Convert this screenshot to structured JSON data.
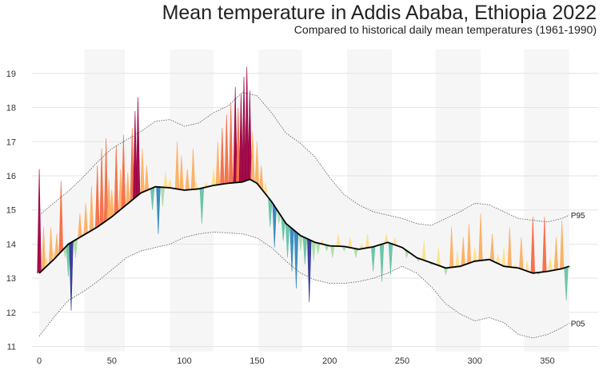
{
  "title": "Mean temperature in Addis Ababa, Ethiopia 2022",
  "subtitle": "Compared to historical daily mean temperatures (1961-1990)",
  "chart_data": {
    "type": "area",
    "title": "Mean temperature in Addis Ababa, Ethiopia 2022",
    "subtitle": "Compared to historical daily mean temperatures (1961-1990)",
    "xlabel": "",
    "ylabel": "",
    "xlim": [
      -5,
      385
    ],
    "ylim": [
      10.85,
      19.7
    ],
    "x_ticks": [
      0,
      50,
      100,
      150,
      200,
      250,
      300,
      350
    ],
    "y_ticks": [
      11,
      12,
      13,
      14,
      15,
      16,
      17,
      18,
      19
    ],
    "grid": "horizontal",
    "month_bands": [
      [
        31,
        59
      ],
      [
        90,
        120
      ],
      [
        151,
        181
      ],
      [
        212,
        243
      ],
      [
        273,
        304
      ],
      [
        334,
        365
      ]
    ],
    "series_labels": [
      "P95",
      "P05"
    ],
    "colors": {
      "hot_extreme": "#9e0142",
      "hot": "#f46d43",
      "warm": "#fdae61",
      "mild": "#fee08b",
      "cool": "#abdda4",
      "cold": "#66c2a5",
      "colder": "#3288bd",
      "cold_extreme": "#313695",
      "mean_line": "#000000",
      "band_fill": "#f5f5f5",
      "grid": "#e3e3e3"
    },
    "mean": {
      "x": [
        0,
        10,
        20,
        30,
        40,
        50,
        60,
        70,
        80,
        90,
        100,
        110,
        120,
        130,
        140,
        145,
        150,
        160,
        170,
        180,
        190,
        200,
        210,
        220,
        230,
        240,
        250,
        260,
        270,
        280,
        290,
        300,
        310,
        320,
        330,
        340,
        350,
        360,
        365
      ],
      "y": [
        13.15,
        13.55,
        14.0,
        14.25,
        14.5,
        14.8,
        15.15,
        15.5,
        15.68,
        15.65,
        15.58,
        15.62,
        15.72,
        15.78,
        15.82,
        15.9,
        15.78,
        15.25,
        14.6,
        14.25,
        14.05,
        13.95,
        13.93,
        13.85,
        13.92,
        14.05,
        13.9,
        13.6,
        13.45,
        13.3,
        13.35,
        13.5,
        13.55,
        13.35,
        13.3,
        13.15,
        13.2,
        13.28,
        13.35
      ]
    },
    "p95": {
      "x": [
        0,
        10,
        20,
        30,
        40,
        50,
        60,
        70,
        80,
        90,
        100,
        110,
        120,
        130,
        140,
        150,
        160,
        170,
        180,
        190,
        200,
        210,
        220,
        230,
        240,
        250,
        260,
        270,
        280,
        290,
        300,
        310,
        320,
        330,
        340,
        350,
        360,
        365
      ],
      "y": [
        14.85,
        15.2,
        15.55,
        15.95,
        16.4,
        16.8,
        17.05,
        17.3,
        17.6,
        17.65,
        17.45,
        17.55,
        17.85,
        18.05,
        18.45,
        18.35,
        17.85,
        17.25,
        16.95,
        16.55,
        15.95,
        15.45,
        15.15,
        14.95,
        14.85,
        14.75,
        14.6,
        14.55,
        14.75,
        14.95,
        15.2,
        15.15,
        14.95,
        14.75,
        14.7,
        14.65,
        14.75,
        14.85
      ]
    },
    "p05": {
      "x": [
        0,
        10,
        20,
        30,
        40,
        50,
        60,
        70,
        80,
        90,
        100,
        110,
        120,
        130,
        140,
        150,
        160,
        170,
        180,
        190,
        200,
        210,
        220,
        230,
        240,
        250,
        260,
        270,
        280,
        290,
        300,
        310,
        320,
        330,
        340,
        350,
        360,
        365
      ],
      "y": [
        11.3,
        11.85,
        12.35,
        12.6,
        12.9,
        13.25,
        13.6,
        13.8,
        13.9,
        14.0,
        14.2,
        14.3,
        14.35,
        14.33,
        14.3,
        14.18,
        13.9,
        13.5,
        13.15,
        12.95,
        12.85,
        12.85,
        12.9,
        13.0,
        13.15,
        13.35,
        13.15,
        12.75,
        12.25,
        11.95,
        11.75,
        11.85,
        11.7,
        11.35,
        11.25,
        11.35,
        11.55,
        11.68
      ]
    },
    "observed_2022": {
      "x": [
        0,
        2,
        3,
        5,
        8,
        10,
        12,
        15,
        18,
        20,
        22,
        25,
        28,
        30,
        32,
        36,
        38,
        40,
        43,
        46,
        48,
        50,
        53,
        56,
        58,
        61,
        64,
        66,
        68,
        71,
        74,
        78,
        82,
        85,
        87,
        90,
        95,
        98,
        102,
        106,
        108,
        112,
        115,
        120,
        123,
        126,
        129,
        132,
        135,
        137,
        139,
        141,
        143,
        145,
        147,
        150,
        153,
        156,
        159,
        162,
        165,
        168,
        171,
        174,
        177,
        180,
        183,
        186,
        189,
        192,
        195,
        198,
        202,
        206,
        210,
        214,
        218,
        222,
        226,
        230,
        233,
        236,
        239,
        242,
        245,
        249,
        253,
        257,
        261,
        265,
        270,
        275,
        280,
        284,
        288,
        292,
        296,
        300,
        304,
        308,
        312,
        316,
        320,
        324,
        328,
        332,
        336,
        340,
        344,
        348,
        352,
        356,
        360,
        363,
        365
      ],
      "y": [
        16.2,
        13.3,
        14.5,
        13.6,
        14.5,
        13.8,
        14.3,
        15.85,
        13.6,
        13.05,
        12.05,
        13.6,
        14.9,
        14.3,
        15.2,
        15.7,
        14.5,
        16.3,
        16.8,
        17.1,
        15.9,
        15.6,
        16.9,
        16.2,
        17.2,
        16.1,
        17.4,
        17.9,
        18.3,
        16.8,
        16.3,
        15.0,
        14.3,
        15.1,
        16.1,
        15.9,
        17.0,
        16.6,
        16.2,
        16.8,
        15.8,
        14.6,
        15.8,
        16.2,
        17.0,
        17.4,
        17.8,
        18.1,
        18.6,
        18.0,
        18.4,
        18.9,
        19.2,
        18.5,
        17.3,
        17.0,
        16.3,
        15.8,
        14.5,
        13.9,
        14.6,
        14.1,
        13.6,
        13.2,
        12.7,
        13.8,
        13.4,
        12.3,
        13.5,
        13.7,
        14.1,
        13.8,
        13.6,
        14.3,
        13.8,
        14.2,
        13.6,
        14.0,
        14.3,
        13.2,
        14.0,
        12.9,
        14.3,
        13.1,
        14.2,
        13.9,
        13.6,
        13.7,
        13.5,
        14.1,
        13.4,
        13.9,
        13.1,
        14.5,
        13.8,
        14.2,
        14.6,
        13.9,
        14.9,
        13.5,
        14.3,
        13.7,
        13.9,
        14.5,
        13.4,
        14.2,
        13.5,
        14.8,
        13.1,
        14.8,
        13.6,
        14.2,
        14.7,
        12.35,
        13.3
      ]
    }
  }
}
